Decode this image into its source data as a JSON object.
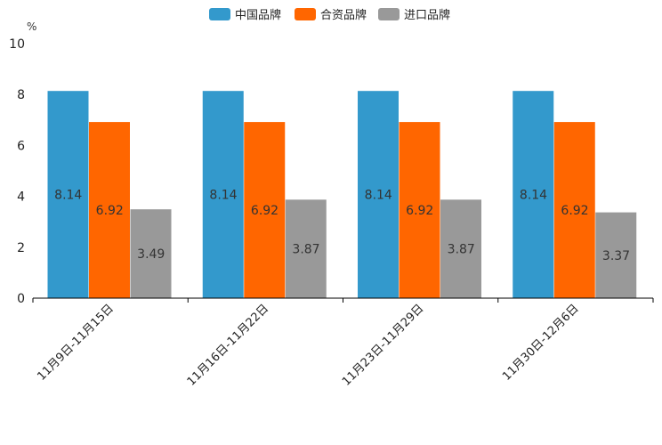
{
  "chart_data": {
    "type": "bar",
    "title": "",
    "xlabel": "",
    "ylabel": "%",
    "ylim": [
      0,
      10
    ],
    "yticks": [
      0,
      2,
      4,
      6,
      8,
      10
    ],
    "grid": false,
    "legend_position": "top-center",
    "categories": [
      "11月9日-11月15日",
      "11月16日-11月22日",
      "11月23日-11月29日",
      "11月30日-12月6日"
    ],
    "series": [
      {
        "name": "中国品牌",
        "color": "#3399cc",
        "values": [
          8.14,
          8.14,
          8.14,
          8.14
        ],
        "labels": [
          "8.14",
          "8.14",
          "8.14",
          "8.14"
        ]
      },
      {
        "name": "合资品牌",
        "color": "#ff6600",
        "values": [
          6.92,
          6.92,
          6.92,
          6.92
        ],
        "labels": [
          "6.92",
          "6.92",
          "6.92",
          "6.92"
        ]
      },
      {
        "name": "进口品牌",
        "color": "#999999",
        "values": [
          3.49,
          3.87,
          3.87,
          3.37
        ],
        "labels": [
          "3.49",
          "3.87",
          "3.87",
          "3.37"
        ]
      }
    ]
  }
}
